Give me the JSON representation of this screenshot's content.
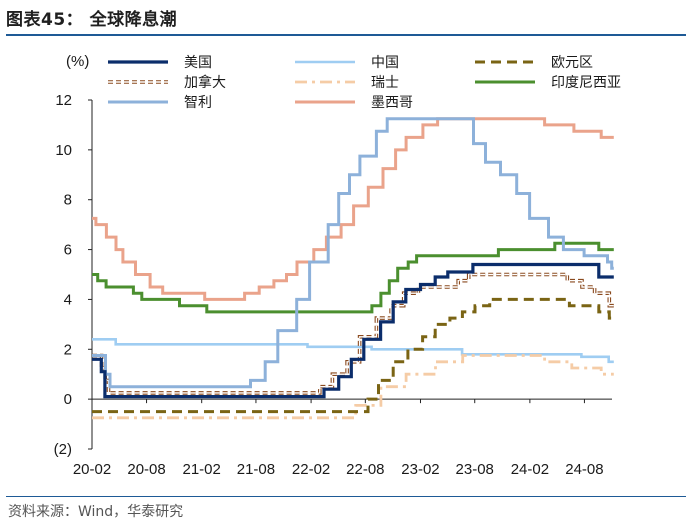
{
  "title": "图表45： 全球降息潮",
  "source": "资料来源：Wind，华泰研究",
  "chart_data": {
    "type": "line",
    "ylabel": "(%)",
    "ylim": [
      -2,
      12
    ],
    "yticks": [
      -2,
      0,
      2,
      4,
      6,
      8,
      10,
      12
    ],
    "ytick_labels": [
      "(2)",
      "0",
      "2",
      "4",
      "6",
      "8",
      "10",
      "12"
    ],
    "xlim": [
      "2020-02",
      "2024-11"
    ],
    "xticks": [
      "2020-02",
      "2020-08",
      "2021-02",
      "2021-08",
      "2022-02",
      "2022-08",
      "2023-02",
      "2023-08",
      "2024-02",
      "2024-08"
    ],
    "xtick_labels": [
      "20-02",
      "20-08",
      "21-02",
      "21-08",
      "22-02",
      "22-08",
      "23-02",
      "23-08",
      "24-02",
      "24-08"
    ],
    "grid": false,
    "legend_position": "top",
    "series": [
      {
        "name": "美国",
        "color": "#0b2d6b",
        "dash": "solid",
        "width": 3.2,
        "points": [
          [
            "2020-02-01",
            1.6
          ],
          [
            "2020-03-03",
            1.1
          ],
          [
            "2020-03-15",
            0.1
          ],
          [
            "2022-03-16",
            0.4
          ],
          [
            "2022-05-04",
            0.9
          ],
          [
            "2022-06-15",
            1.6
          ],
          [
            "2022-07-27",
            2.4
          ],
          [
            "2022-09-21",
            3.1
          ],
          [
            "2022-11-02",
            3.9
          ],
          [
            "2022-12-14",
            4.4
          ],
          [
            "2023-02-01",
            4.6
          ],
          [
            "2023-03-22",
            4.9
          ],
          [
            "2023-05-03",
            5.1
          ],
          [
            "2023-07-26",
            5.4
          ],
          [
            "2024-09-18",
            4.9
          ],
          [
            "2024-11-07",
            4.9
          ]
        ]
      },
      {
        "name": "中国",
        "color": "#9fcdf2",
        "dash": "solid",
        "width": 2.6,
        "points": [
          [
            "2020-02-01",
            2.4
          ],
          [
            "2020-04-20",
            2.2
          ],
          [
            "2022-01-20",
            2.1
          ],
          [
            "2022-08-22",
            2.0
          ],
          [
            "2023-06-20",
            1.8
          ],
          [
            "2024-07-22",
            1.7
          ],
          [
            "2024-10-21",
            1.5
          ],
          [
            "2024-11-07",
            1.5
          ]
        ]
      },
      {
        "name": "欧元区",
        "color": "#7a6414",
        "dash": "10 6",
        "width": 3.0,
        "points": [
          [
            "2020-02-01",
            -0.5
          ],
          [
            "2022-07-27",
            -0.5
          ],
          [
            "2022-08-10",
            0.0
          ],
          [
            "2022-09-14",
            0.75
          ],
          [
            "2022-11-02",
            1.5
          ],
          [
            "2022-12-21",
            2.0
          ],
          [
            "2023-02-08",
            2.5
          ],
          [
            "2023-03-22",
            3.0
          ],
          [
            "2023-05-10",
            3.25
          ],
          [
            "2023-06-21",
            3.5
          ],
          [
            "2023-08-02",
            3.75
          ],
          [
            "2023-09-20",
            4.0
          ],
          [
            "2024-06-12",
            3.75
          ],
          [
            "2024-09-18",
            3.5
          ],
          [
            "2024-10-23",
            3.25
          ],
          [
            "2024-11-07",
            3.25
          ]
        ]
      },
      {
        "name": "加拿大",
        "color": "#8a4a1f",
        "dash": "5 3",
        "width": 3.6,
        "double": true,
        "points": [
          [
            "2020-02-01",
            1.75
          ],
          [
            "2020-03-04",
            1.25
          ],
          [
            "2020-03-16",
            0.75
          ],
          [
            "2020-03-27",
            0.25
          ],
          [
            "2022-03-02",
            0.5
          ],
          [
            "2022-04-13",
            1.0
          ],
          [
            "2022-06-01",
            1.5
          ],
          [
            "2022-07-13",
            2.5
          ],
          [
            "2022-09-07",
            3.25
          ],
          [
            "2022-10-26",
            3.75
          ],
          [
            "2022-12-07",
            4.25
          ],
          [
            "2023-01-25",
            4.5
          ],
          [
            "2023-06-07",
            4.75
          ],
          [
            "2023-07-12",
            5.0
          ],
          [
            "2024-06-05",
            4.75
          ],
          [
            "2024-07-24",
            4.5
          ],
          [
            "2024-09-04",
            4.25
          ],
          [
            "2024-10-23",
            3.75
          ],
          [
            "2024-11-07",
            3.75
          ]
        ]
      },
      {
        "name": "瑞士",
        "color": "#f5cca6",
        "dash": "12 5 3 5",
        "width": 2.8,
        "points": [
          [
            "2020-02-01",
            -0.75
          ],
          [
            "2022-06-16",
            -0.75
          ],
          [
            "2022-06-30",
            -0.25
          ],
          [
            "2022-09-22",
            0.5
          ],
          [
            "2022-12-15",
            1.0
          ],
          [
            "2023-03-23",
            1.5
          ],
          [
            "2023-06-22",
            1.75
          ],
          [
            "2024-03-21",
            1.5
          ],
          [
            "2024-06-20",
            1.25
          ],
          [
            "2024-09-26",
            1.0
          ],
          [
            "2024-11-07",
            1.0
          ]
        ]
      },
      {
        "name": "印度尼西亚",
        "color": "#4b8f2f",
        "dash": "solid",
        "width": 3.0,
        "points": [
          [
            "2020-02-01",
            5.0
          ],
          [
            "2020-02-20",
            4.75
          ],
          [
            "2020-03-19",
            4.5
          ],
          [
            "2020-06-18",
            4.25
          ],
          [
            "2020-07-16",
            4.0
          ],
          [
            "2020-11-19",
            3.75
          ],
          [
            "2021-02-18",
            3.5
          ],
          [
            "2022-08-23",
            3.75
          ],
          [
            "2022-09-22",
            4.25
          ],
          [
            "2022-10-20",
            4.75
          ],
          [
            "2022-11-17",
            5.25
          ],
          [
            "2022-12-22",
            5.5
          ],
          [
            "2023-01-19",
            5.75
          ],
          [
            "2023-10-19",
            6.0
          ],
          [
            "2024-04-24",
            6.25
          ],
          [
            "2024-09-18",
            6.0
          ],
          [
            "2024-11-07",
            6.0
          ]
        ]
      },
      {
        "name": "智利",
        "color": "#8db1da",
        "dash": "solid",
        "width": 3.0,
        "points": [
          [
            "2020-02-01",
            1.75
          ],
          [
            "2020-03-17",
            1.0
          ],
          [
            "2020-04-01",
            0.5
          ],
          [
            "2021-07-14",
            0.75
          ],
          [
            "2021-09-01",
            1.5
          ],
          [
            "2021-10-13",
            2.75
          ],
          [
            "2021-12-15",
            4.0
          ],
          [
            "2022-01-27",
            5.5
          ],
          [
            "2022-03-30",
            7.0
          ],
          [
            "2022-05-04",
            8.25
          ],
          [
            "2022-06-09",
            9.0
          ],
          [
            "2022-07-14",
            9.75
          ],
          [
            "2022-09-07",
            10.75
          ],
          [
            "2022-10-13",
            11.25
          ],
          [
            "2023-07-28",
            10.25
          ],
          [
            "2023-09-06",
            9.5
          ],
          [
            "2023-10-26",
            9.0
          ],
          [
            "2023-12-19",
            8.25
          ],
          [
            "2024-01-31",
            7.25
          ],
          [
            "2024-04-03",
            6.5
          ],
          [
            "2024-05-23",
            6.0
          ],
          [
            "2024-07-31",
            5.75
          ],
          [
            "2024-10-17",
            5.5
          ],
          [
            "2024-10-31",
            5.25
          ],
          [
            "2024-11-07",
            5.25
          ]
        ]
      },
      {
        "name": "墨西哥",
        "color": "#eaa38b",
        "dash": "solid",
        "width": 3.0,
        "points": [
          [
            "2020-02-01",
            7.25
          ],
          [
            "2020-02-14",
            7.0
          ],
          [
            "2020-03-20",
            6.5
          ],
          [
            "2020-04-21",
            6.0
          ],
          [
            "2020-05-14",
            5.5
          ],
          [
            "2020-06-25",
            5.0
          ],
          [
            "2020-08-13",
            4.5
          ],
          [
            "2020-09-24",
            4.25
          ],
          [
            "2021-02-11",
            4.0
          ],
          [
            "2021-06-24",
            4.25
          ],
          [
            "2021-08-12",
            4.5
          ],
          [
            "2021-09-30",
            4.75
          ],
          [
            "2021-11-11",
            5.0
          ],
          [
            "2021-12-16",
            5.5
          ],
          [
            "2022-02-10",
            6.0
          ],
          [
            "2022-03-24",
            6.5
          ],
          [
            "2022-05-12",
            7.0
          ],
          [
            "2022-06-23",
            7.75
          ],
          [
            "2022-08-11",
            8.5
          ],
          [
            "2022-09-29",
            9.25
          ],
          [
            "2022-11-10",
            10.0
          ],
          [
            "2022-12-15",
            10.5
          ],
          [
            "2023-02-09",
            11.0
          ],
          [
            "2023-03-30",
            11.25
          ],
          [
            "2024-03-21",
            11.0
          ],
          [
            "2024-06-27",
            10.75
          ],
          [
            "2024-09-26",
            10.5
          ],
          [
            "2024-11-07",
            10.5
          ]
        ]
      }
    ]
  }
}
